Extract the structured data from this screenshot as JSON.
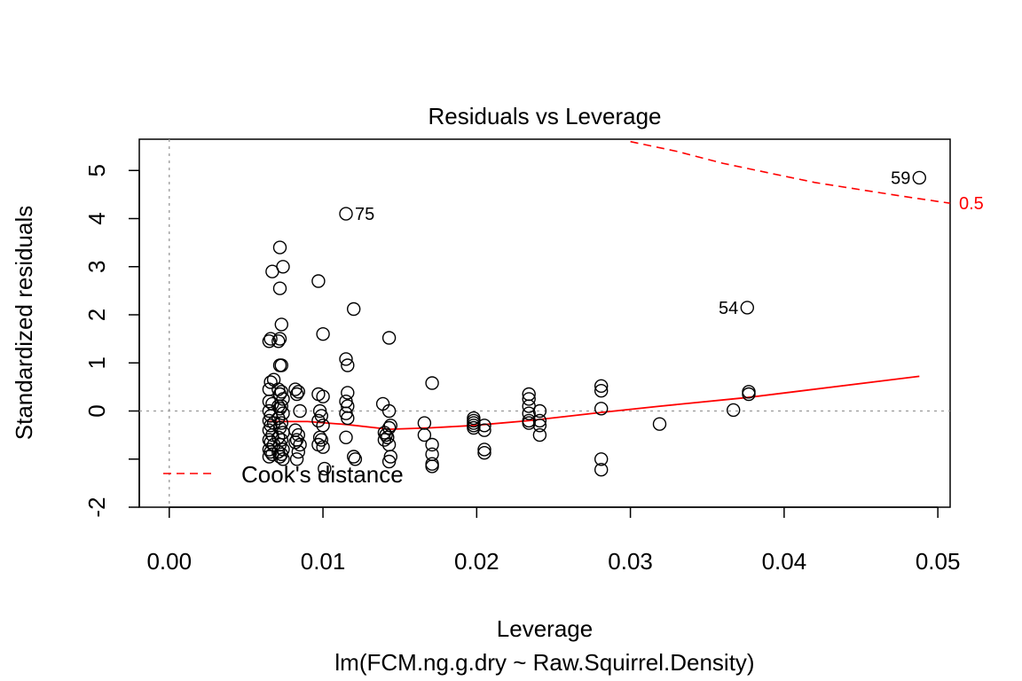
{
  "chart_data": {
    "type": "scatter",
    "title": "Residuals vs Leverage",
    "xlabel": "Leverage",
    "subtitle": "lm(FCM.ng.g.dry ~ Raw.Squirrel.Density)",
    "ylabel": "Standardized residuals",
    "xlim": [
      -0.00195,
      0.0508
    ],
    "ylim": [
      -2.0,
      5.65
    ],
    "xticks": [
      {
        "value": 0.0,
        "label": "0.00"
      },
      {
        "value": 0.01,
        "label": "0.01"
      },
      {
        "value": 0.02,
        "label": "0.02"
      },
      {
        "value": 0.03,
        "label": "0.03"
      },
      {
        "value": 0.04,
        "label": "0.04"
      },
      {
        "value": 0.05,
        "label": "0.05"
      }
    ],
    "yticks": [
      {
        "value": -2,
        "label": "-2"
      },
      {
        "value": -1,
        "label": ""
      },
      {
        "value": 0,
        "label": "0"
      },
      {
        "value": 1,
        "label": "1"
      },
      {
        "value": 2,
        "label": "2"
      },
      {
        "value": 3,
        "label": "3"
      },
      {
        "value": 4,
        "label": "4"
      },
      {
        "value": 5,
        "label": "5"
      }
    ],
    "points": [
      [
        0.0065,
        1.45
      ],
      [
        0.0066,
        1.5
      ],
      [
        0.0067,
        2.9
      ],
      [
        0.0065,
        0.45
      ],
      [
        0.0066,
        0.6
      ],
      [
        0.0068,
        0.65
      ],
      [
        0.0065,
        0.2
      ],
      [
        0.0067,
        0.15
      ],
      [
        0.0065,
        0.0
      ],
      [
        0.0066,
        -0.1
      ],
      [
        0.0065,
        -0.2
      ],
      [
        0.0068,
        -0.25
      ],
      [
        0.0066,
        -0.3
      ],
      [
        0.0065,
        -0.4
      ],
      [
        0.0067,
        -0.5
      ],
      [
        0.0065,
        -0.6
      ],
      [
        0.0066,
        -0.65
      ],
      [
        0.0068,
        -0.7
      ],
      [
        0.0065,
        -0.8
      ],
      [
        0.0066,
        -0.85
      ],
      [
        0.0067,
        -0.9
      ],
      [
        0.0065,
        -0.95
      ],
      [
        0.0072,
        3.4
      ],
      [
        0.0074,
        3.0
      ],
      [
        0.0072,
        2.55
      ],
      [
        0.0073,
        1.8
      ],
      [
        0.0071,
        1.45
      ],
      [
        0.0072,
        1.5
      ],
      [
        0.0072,
        0.95
      ],
      [
        0.0073,
        0.95
      ],
      [
        0.0071,
        0.45
      ],
      [
        0.0073,
        0.4
      ],
      [
        0.0072,
        0.35
      ],
      [
        0.0074,
        0.25
      ],
      [
        0.0071,
        0.1
      ],
      [
        0.0073,
        0.1
      ],
      [
        0.0072,
        0.05
      ],
      [
        0.0074,
        -0.05
      ],
      [
        0.0071,
        -0.15
      ],
      [
        0.0073,
        -0.25
      ],
      [
        0.0072,
        -0.35
      ],
      [
        0.0074,
        -0.45
      ],
      [
        0.0071,
        -0.55
      ],
      [
        0.0073,
        -0.6
      ],
      [
        0.0072,
        -0.7
      ],
      [
        0.0074,
        -0.8
      ],
      [
        0.0071,
        -0.85
      ],
      [
        0.0073,
        -0.9
      ],
      [
        0.0072,
        -0.95
      ],
      [
        0.0074,
        -1.0
      ],
      [
        0.0082,
        0.45
      ],
      [
        0.0084,
        0.4
      ],
      [
        0.0083,
        0.35
      ],
      [
        0.0085,
        0.0
      ],
      [
        0.0082,
        -0.4
      ],
      [
        0.0084,
        -0.5
      ],
      [
        0.0083,
        -0.6
      ],
      [
        0.0085,
        -0.7
      ],
      [
        0.0082,
        -0.65
      ],
      [
        0.0084,
        -0.85
      ],
      [
        0.0083,
        -1.0
      ],
      [
        0.0097,
        2.7
      ],
      [
        0.01,
        1.6
      ],
      [
        0.0097,
        0.35
      ],
      [
        0.01,
        0.3
      ],
      [
        0.0098,
        0.0
      ],
      [
        0.0099,
        -0.1
      ],
      [
        0.0097,
        -0.2
      ],
      [
        0.01,
        -0.3
      ],
      [
        0.0098,
        -0.55
      ],
      [
        0.0099,
        -0.6
      ],
      [
        0.0097,
        -0.7
      ],
      [
        0.01,
        -0.75
      ],
      [
        0.0101,
        -1.2
      ],
      [
        0.0115,
        4.1
      ],
      [
        0.012,
        2.12
      ],
      [
        0.0115,
        1.08
      ],
      [
        0.0116,
        0.95
      ],
      [
        0.0116,
        0.38
      ],
      [
        0.0115,
        0.2
      ],
      [
        0.0116,
        0.1
      ],
      [
        0.0115,
        -0.05
      ],
      [
        0.0116,
        -0.15
      ],
      [
        0.0115,
        -0.55
      ],
      [
        0.012,
        -0.95
      ],
      [
        0.0121,
        -1.0
      ],
      [
        0.0139,
        0.15
      ],
      [
        0.014,
        -0.45
      ],
      [
        0.0141,
        -0.5
      ],
      [
        0.0142,
        -0.55
      ],
      [
        0.014,
        -0.6
      ],
      [
        0.0143,
        -0.35
      ],
      [
        0.0143,
        1.52
      ],
      [
        0.0143,
        0.0
      ],
      [
        0.0144,
        -0.3
      ],
      [
        0.0143,
        -0.7
      ],
      [
        0.0144,
        -0.95
      ],
      [
        0.0143,
        -1.05
      ],
      [
        0.0166,
        -0.25
      ],
      [
        0.0166,
        -0.5
      ],
      [
        0.0171,
        0.58
      ],
      [
        0.0171,
        -0.7
      ],
      [
        0.0171,
        -0.9
      ],
      [
        0.0171,
        -1.1
      ],
      [
        0.0171,
        -1.15
      ],
      [
        0.0198,
        -0.15
      ],
      [
        0.0198,
        -0.2
      ],
      [
        0.0198,
        -0.25
      ],
      [
        0.0198,
        -0.3
      ],
      [
        0.0198,
        -0.35
      ],
      [
        0.0205,
        -0.3
      ],
      [
        0.0205,
        -0.4
      ],
      [
        0.0205,
        -0.8
      ],
      [
        0.0205,
        -0.87
      ],
      [
        0.0234,
        0.35
      ],
      [
        0.0234,
        0.25
      ],
      [
        0.0234,
        0.1
      ],
      [
        0.0234,
        -0.05
      ],
      [
        0.0234,
        -0.2
      ],
      [
        0.0234,
        -0.25
      ],
      [
        0.0241,
        0.0
      ],
      [
        0.0241,
        -0.2
      ],
      [
        0.0241,
        -0.3
      ],
      [
        0.0241,
        -0.5
      ],
      [
        0.0281,
        0.52
      ],
      [
        0.0281,
        0.42
      ],
      [
        0.0281,
        0.05
      ],
      [
        0.0281,
        -1.0
      ],
      [
        0.0281,
        -1.22
      ],
      [
        0.0319,
        -0.27
      ],
      [
        0.0367,
        0.02
      ],
      [
        0.0376,
        2.15
      ],
      [
        0.0377,
        0.4
      ],
      [
        0.0377,
        0.35
      ],
      [
        0.0488,
        4.85
      ]
    ],
    "point_labels": [
      {
        "text": "75",
        "x": 0.0115,
        "y": 4.1,
        "side": "right"
      },
      {
        "text": "54",
        "x": 0.0376,
        "y": 2.15,
        "side": "left"
      },
      {
        "text": "59",
        "x": 0.0488,
        "y": 4.85,
        "side": "left"
      }
    ],
    "smoother": {
      "color": "#ff0000",
      "x": [
        0.0065,
        0.009,
        0.0115,
        0.0143,
        0.017,
        0.0198,
        0.0234,
        0.0281,
        0.0319,
        0.0376,
        0.0488
      ],
      "y": [
        -0.22,
        -0.22,
        -0.28,
        -0.38,
        -0.35,
        -0.3,
        -0.2,
        -0.03,
        0.1,
        0.28,
        0.72
      ]
    },
    "cooks_contour": {
      "level_label": "0.5",
      "color": "#ff0000",
      "x": [
        0.03,
        0.033,
        0.036,
        0.039,
        0.042,
        0.045,
        0.048,
        0.0508
      ],
      "y": [
        5.6,
        5.4,
        5.15,
        4.95,
        4.75,
        4.6,
        4.45,
        4.32
      ]
    },
    "legend": {
      "text": "Cook's distance",
      "position": "bottom-left",
      "line_color": "#ff0000"
    },
    "reference_lines": {
      "h": 0,
      "v": 0,
      "color": "#999999"
    }
  }
}
